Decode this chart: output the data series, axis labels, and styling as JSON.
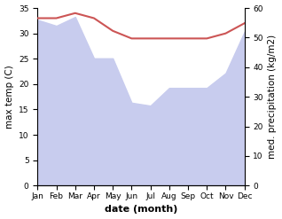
{
  "months": [
    "Jan",
    "Feb",
    "Mar",
    "Apr",
    "May",
    "Jun",
    "Jul",
    "Aug",
    "Sep",
    "Oct",
    "Nov",
    "Dec"
  ],
  "max_temp": [
    33.0,
    33.0,
    34.0,
    33.0,
    30.5,
    29.0,
    29.0,
    29.0,
    29.0,
    29.0,
    30.0,
    32.0
  ],
  "med_precip": [
    56,
    54,
    57,
    43,
    43,
    28,
    27,
    33,
    33,
    33,
    38,
    52
  ],
  "temp_color": "#cc5555",
  "precip_fill_color": "#c8ccee",
  "ylabel_left": "max temp (C)",
  "ylabel_right": "med. precipitation (kg/m2)",
  "xlabel": "date (month)",
  "ylim_left": [
    0,
    35
  ],
  "ylim_right": [
    0,
    60
  ],
  "yticks_left": [
    0,
    5,
    10,
    15,
    20,
    25,
    30,
    35
  ],
  "yticks_right": [
    0,
    10,
    20,
    30,
    40,
    50,
    60
  ],
  "background_color": "#ffffff",
  "label_fontsize": 7.5,
  "tick_fontsize": 6.5,
  "xlabel_fontsize": 8
}
